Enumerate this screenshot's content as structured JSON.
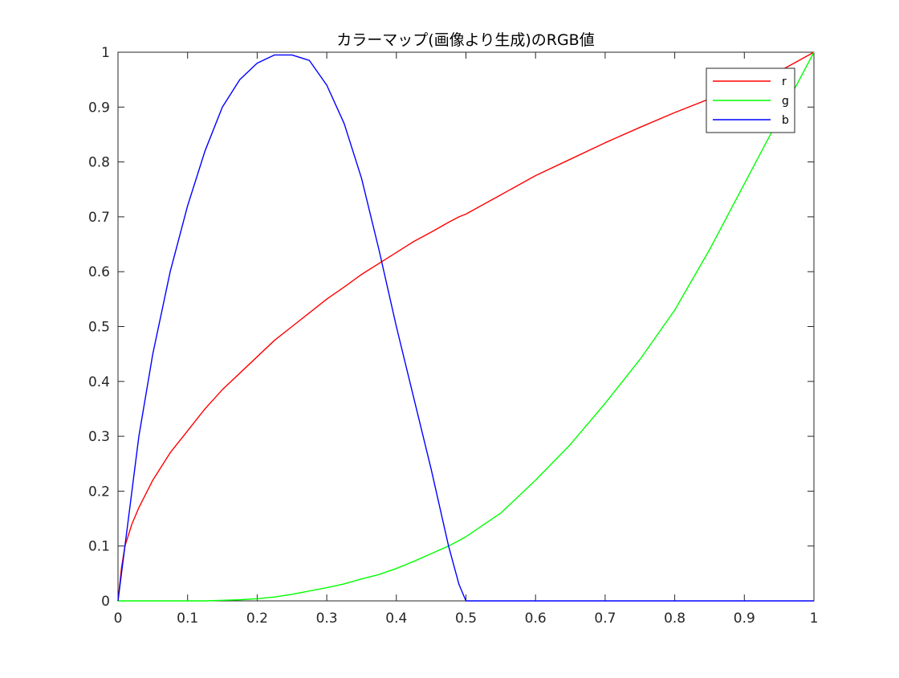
{
  "chart_data": {
    "type": "line",
    "title": "カラーマップ(画像より生成)のRGB値",
    "xlabel": "",
    "ylabel": "",
    "xlim": [
      0,
      1
    ],
    "ylim": [
      0,
      1
    ],
    "xticks": [
      0,
      0.1,
      0.2,
      0.3,
      0.4,
      0.5,
      0.6,
      0.7,
      0.8,
      0.9,
      1
    ],
    "xtick_labels": [
      "0",
      "0.1",
      "0.2",
      "0.3",
      "0.4",
      "0.5",
      "0.6",
      "0.7",
      "0.8",
      "0.9",
      "1"
    ],
    "yticks": [
      0,
      0.1,
      0.2,
      0.3,
      0.4,
      0.5,
      0.6,
      0.7,
      0.8,
      0.9,
      1
    ],
    "ytick_labels": [
      "0",
      "0.1",
      "0.2",
      "0.3",
      "0.4",
      "0.5",
      "0.6",
      "0.7",
      "0.8",
      "0.9",
      "1"
    ],
    "grid": false,
    "legend_position": "top-right",
    "x": [
      0,
      0.005,
      0.01,
      0.02,
      0.03,
      0.05,
      0.075,
      0.1,
      0.125,
      0.15,
      0.175,
      0.2,
      0.225,
      0.25,
      0.275,
      0.3,
      0.325,
      0.35,
      0.375,
      0.4,
      0.425,
      0.45,
      0.475,
      0.49,
      0.5,
      0.55,
      0.6,
      0.65,
      0.7,
      0.75,
      0.8,
      0.85,
      0.9,
      0.95,
      1.0
    ],
    "series": [
      {
        "name": "r",
        "color": "#ff0000",
        "values": [
          0,
          0.06,
          0.1,
          0.14,
          0.17,
          0.22,
          0.27,
          0.31,
          0.35,
          0.385,
          0.415,
          0.445,
          0.475,
          0.5,
          0.525,
          0.55,
          0.572,
          0.595,
          0.615,
          0.635,
          0.655,
          0.672,
          0.69,
          0.7,
          0.705,
          0.74,
          0.775,
          0.805,
          0.835,
          0.863,
          0.89,
          0.915,
          0.94,
          0.965,
          1.0
        ]
      },
      {
        "name": "g",
        "color": "#00ff00",
        "values": [
          0,
          0,
          0,
          0,
          0,
          0,
          0,
          0,
          0,
          0.001,
          0.002,
          0.004,
          0.007,
          0.012,
          0.018,
          0.024,
          0.031,
          0.04,
          0.048,
          0.059,
          0.072,
          0.086,
          0.1,
          0.11,
          0.117,
          0.16,
          0.22,
          0.285,
          0.36,
          0.44,
          0.53,
          0.64,
          0.76,
          0.88,
          1.0
        ]
      },
      {
        "name": "b",
        "color": "#0000ff",
        "values": [
          0,
          0.05,
          0.1,
          0.2,
          0.3,
          0.45,
          0.6,
          0.72,
          0.82,
          0.9,
          0.95,
          0.98,
          0.995,
          0.995,
          0.985,
          0.94,
          0.87,
          0.77,
          0.64,
          0.5,
          0.37,
          0.24,
          0.1,
          0.03,
          0,
          0,
          0,
          0,
          0,
          0,
          0,
          0,
          0,
          0,
          0
        ]
      }
    ]
  }
}
